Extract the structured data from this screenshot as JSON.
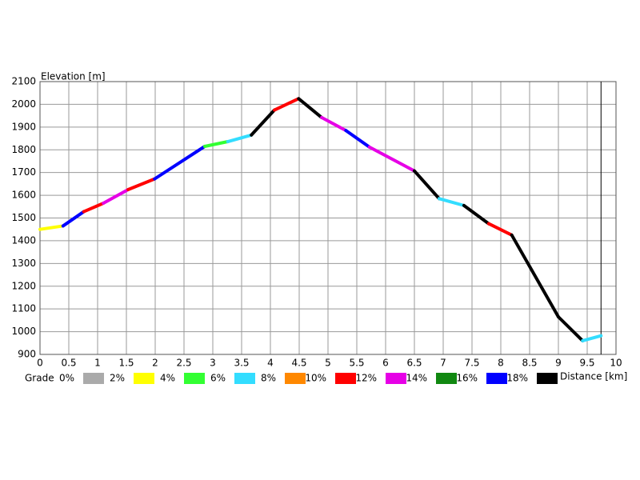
{
  "chart_data": {
    "type": "line",
    "y_label": "Elevation [m]",
    "x_label": "Distance [km]",
    "xlim": [
      0,
      10
    ],
    "xticks": [
      0,
      0.5,
      1,
      1.5,
      2,
      2.5,
      3,
      3.5,
      4,
      4.5,
      5,
      5.5,
      6,
      6.5,
      7,
      7.5,
      8,
      8.5,
      9,
      9.5,
      10
    ],
    "ylim": [
      900,
      2100
    ],
    "yticks": [
      900,
      1000,
      1100,
      1200,
      1300,
      1400,
      1500,
      1600,
      1700,
      1800,
      1900,
      2000,
      2100
    ],
    "grid": true,
    "end_line_x": 9.74,
    "series": [
      {
        "x": [
          0,
          0.4,
          0.76,
          1.1,
          1.53,
          1.99,
          2.86,
          3.26,
          3.67,
          4.07,
          4.49,
          4.89,
          5.31,
          5.72,
          6.5,
          6.93,
          7.36,
          7.79,
          8.19,
          9.0,
          9.42,
          9.74
        ],
        "values": [
          1450,
          1465,
          1528,
          1565,
          1625,
          1672,
          1815,
          1836,
          1865,
          1975,
          2025,
          1942,
          1885,
          1812,
          1707,
          1585,
          1555,
          1475,
          1425,
          1065,
          960,
          982
        ],
        "segment_colors": [
          "#ffff00",
          "#0000ff",
          "#ff0000",
          "#e600e6",
          "#ff0000",
          "#0000ff",
          "#33ff33",
          "#33ddff",
          "#000000",
          "#ff0000",
          "#000000",
          "#e600e6",
          "#0000ff",
          "#e600e6",
          "#000000",
          "#33ddff",
          "#000000",
          "#ff0000",
          "#000000",
          "#000000",
          "#33ddff"
        ]
      }
    ],
    "legend": {
      "title": "Grade",
      "labels": [
        "0%",
        "2%",
        "4%",
        "6%",
        "8%",
        "10%",
        "12%",
        "14%",
        "16%",
        "18%"
      ],
      "colors": [
        "#aaaaaa",
        "#ffff00",
        "#33ff33",
        "#33ddff",
        "#ff8800",
        "#ff0000",
        "#e600e6",
        "#118811",
        "#0000ff",
        "#000000"
      ]
    }
  }
}
